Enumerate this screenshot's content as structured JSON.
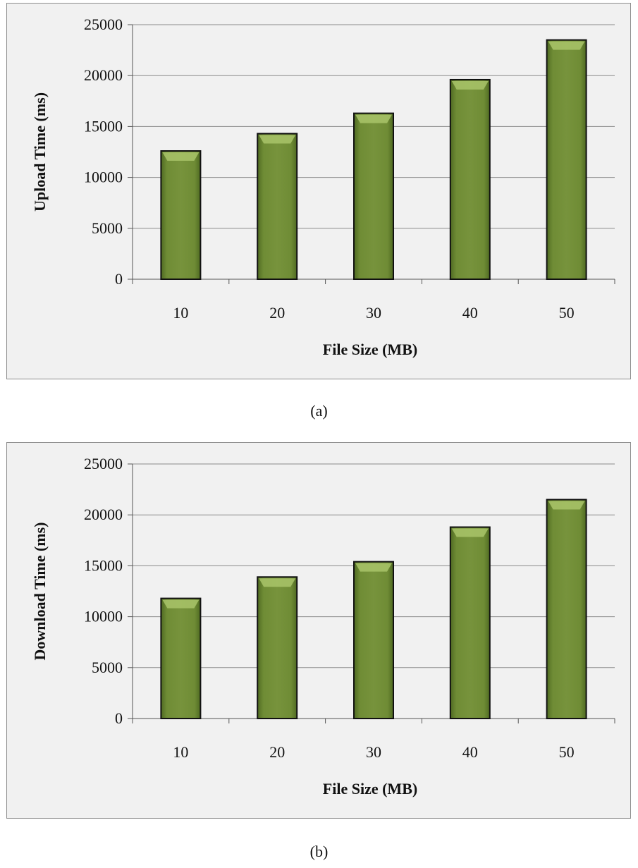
{
  "chart_data": [
    {
      "type": "bar",
      "title": "",
      "xlabel": "File Size (MB)",
      "ylabel": "Upload Time (ms)",
      "categories": [
        "10",
        "20",
        "30",
        "40",
        "50"
      ],
      "values": [
        12600,
        14300,
        16300,
        19600,
        23500
      ],
      "ylim": [
        0,
        25000
      ],
      "yticks": [
        "0",
        "5000",
        "10000",
        "15000",
        "20000",
        "25000"
      ],
      "grid": true,
      "bar_color": "#77933c",
      "caption": "(a)"
    },
    {
      "type": "bar",
      "title": "",
      "xlabel": "File Size (MB)",
      "ylabel": "Download Time (ms)",
      "categories": [
        "10",
        "20",
        "30",
        "40",
        "50"
      ],
      "values": [
        11800,
        13900,
        15400,
        18800,
        21500
      ],
      "ylim": [
        0,
        25000
      ],
      "yticks": [
        "0",
        "5000",
        "10000",
        "15000",
        "20000",
        "25000"
      ],
      "grid": true,
      "bar_color": "#77933c",
      "caption": "(b)"
    }
  ]
}
